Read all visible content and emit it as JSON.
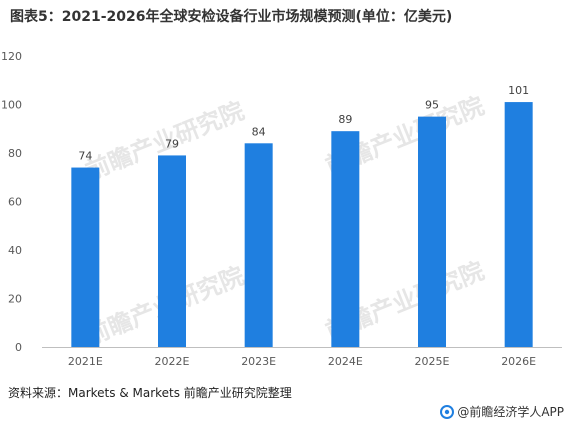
{
  "title": "图表5：2021-2026年全球安检设备行业市场规模预测(单位：亿美元)",
  "source": "资料来源：Markets & Markets 前瞻产业研究院整理",
  "brand": "@前瞻经济学人APP",
  "watermark": "前瞻产业研究院",
  "colors": {
    "bar": "#1f7fe0",
    "axis": "#bfbfbf",
    "tick_text": "#595959",
    "label_text": "#404040"
  },
  "chart_data": {
    "type": "bar",
    "categories": [
      "2021E",
      "2022E",
      "2023E",
      "2024E",
      "2025E",
      "2026E"
    ],
    "values": [
      74,
      79,
      84,
      89,
      95,
      101
    ],
    "ylim": [
      0,
      120
    ],
    "yticks": [
      0,
      20,
      40,
      60,
      80,
      100,
      120
    ],
    "xlabel": "",
    "ylabel": "",
    "grid": false,
    "data_labels": true
  }
}
